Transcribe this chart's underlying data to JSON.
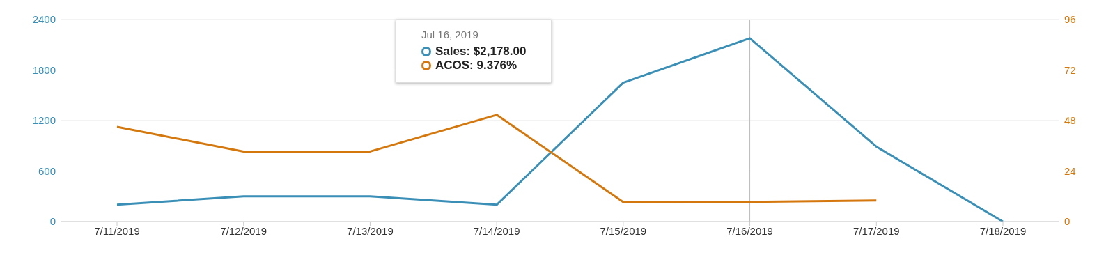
{
  "chart_data": {
    "type": "line",
    "categories": [
      "7/11/2019",
      "7/12/2019",
      "7/13/2019",
      "7/14/2019",
      "7/15/2019",
      "7/16/2019",
      "7/17/2019",
      "7/18/2019"
    ],
    "series": [
      {
        "color": "#3a8fb7",
        "values": [
          200,
          300,
          300,
          200,
          1650,
          2178,
          890,
          0
        ]
      },
      {
        "color": "#d4770c",
        "axis": "y2",
        "values": [
          45,
          33.3,
          33.3,
          50.7,
          9.3,
          9.376,
          10,
          null
        ]
      }
    ],
    "ylim": [
      0,
      2400
    ],
    "yticks": [
      0,
      600,
      1200,
      1800,
      2400
    ],
    "y2lim": [
      0,
      96
    ],
    "y2ticks": [
      0,
      24,
      48,
      72,
      96
    ],
    "grid": "y",
    "ref_lines": [
      {
        "axis": "x",
        "value": "7/16/2019",
        "color": "#bbbbbb"
      }
    ],
    "annotations": [
      "Jul 16, 2019",
      "Sales: $2,178.00",
      "ACOS: 9.376%"
    ]
  }
}
